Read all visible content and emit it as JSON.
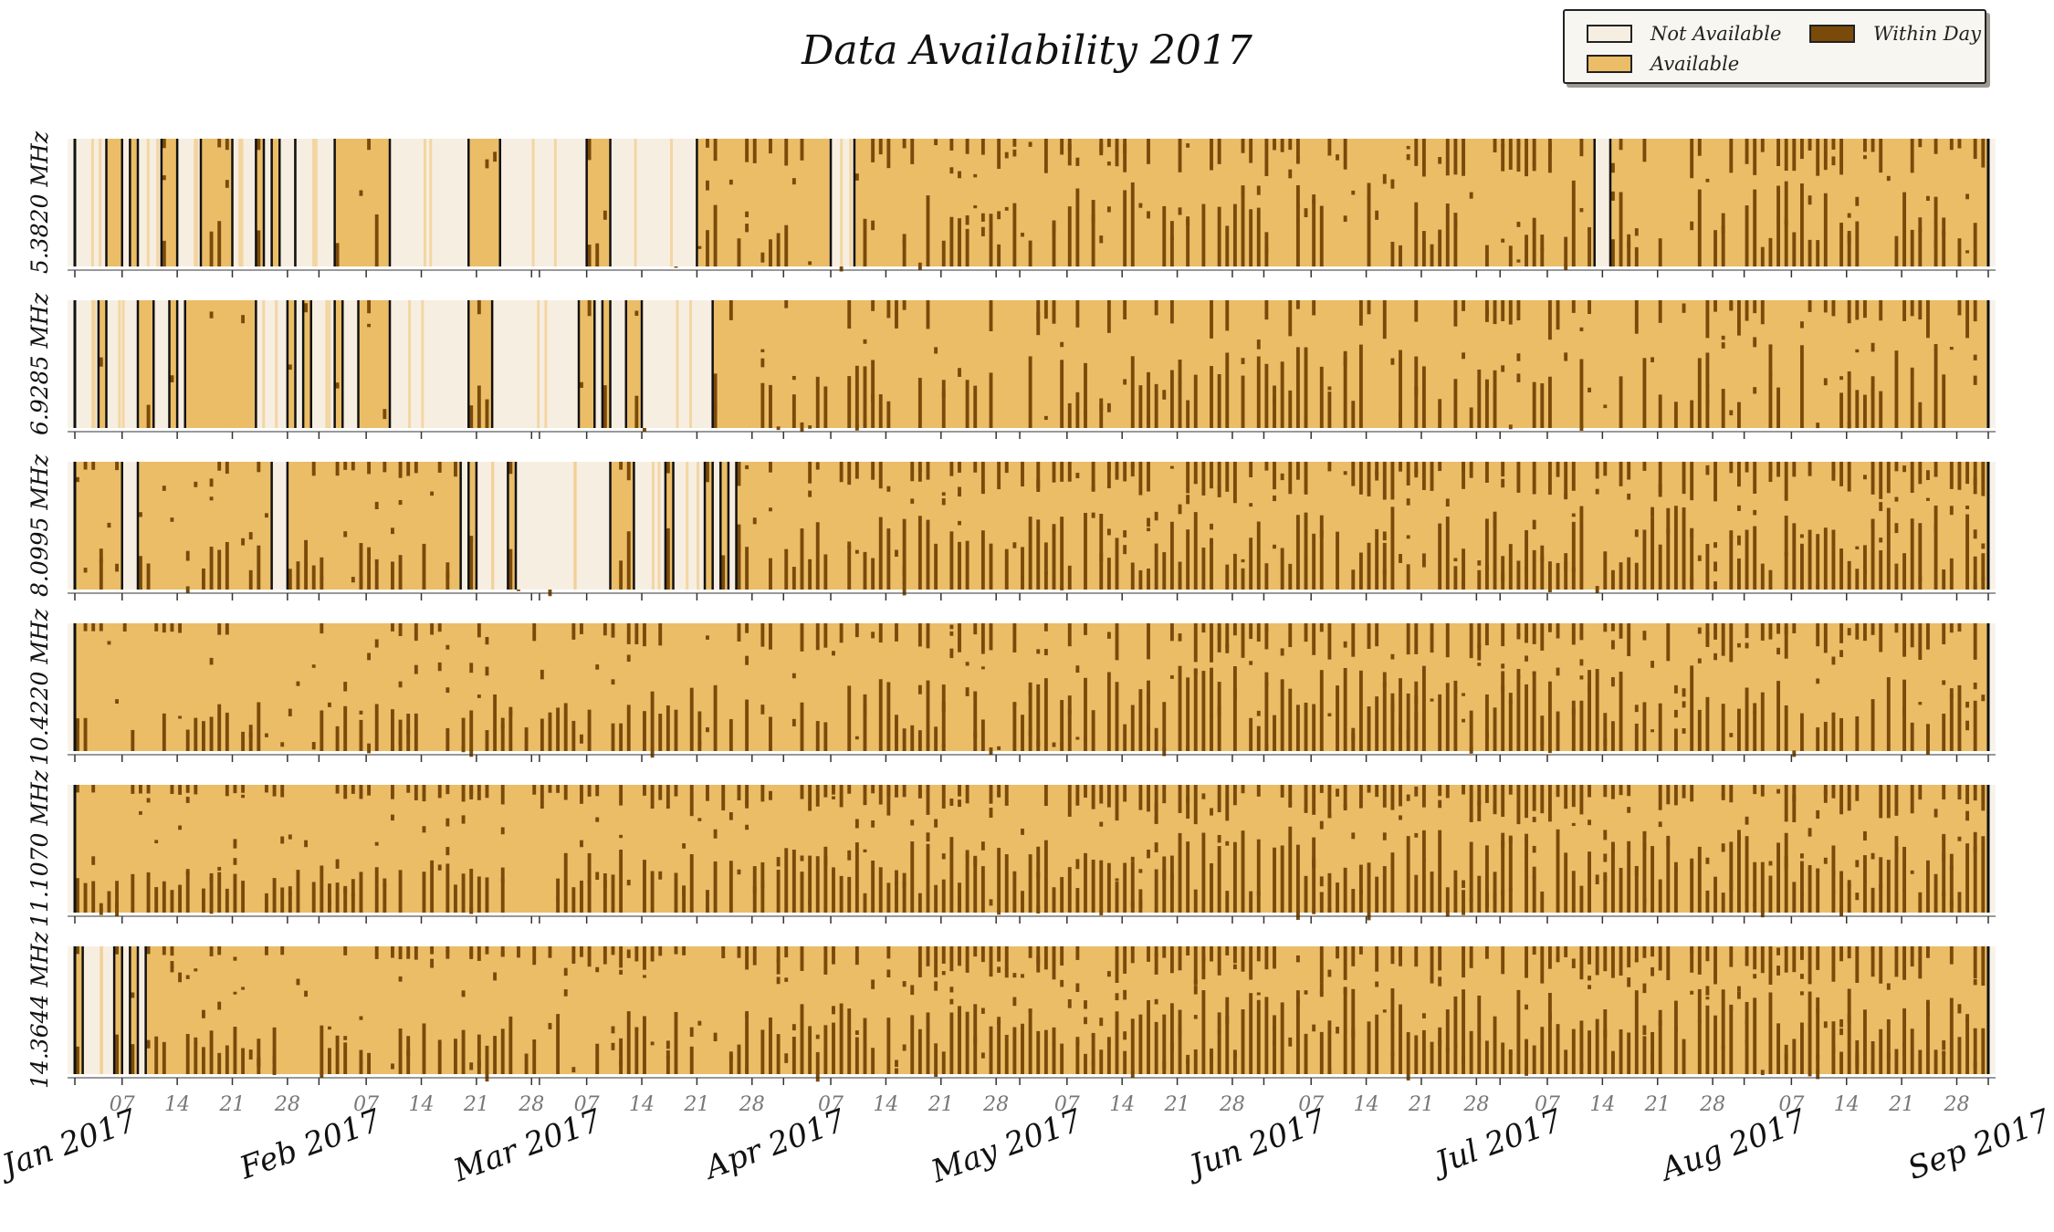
{
  "chart_data": {
    "type": "heatmap",
    "title": "Data Availability 2017",
    "legend": {
      "placement": "top-right",
      "entries": [
        {
          "label": "Not Available",
          "color": "#f7eee2"
        },
        {
          "label": "Within Day",
          "color": "#7a4a0a"
        },
        {
          "label": "Available",
          "color": "#ebbd67"
        }
      ]
    },
    "xlim": [
      "2017-01-01",
      "2017-09-01"
    ],
    "x_major_ticks": [
      "Jan 2017",
      "Feb 2017",
      "Mar 2017",
      "Apr 2017",
      "May 2017",
      "Jun 2017",
      "Jul 2017",
      "Aug 2017",
      "Sep 2017"
    ],
    "x_major_dates": [
      "2017-01-01",
      "2017-02-01",
      "2017-03-01",
      "2017-04-01",
      "2017-05-01",
      "2017-06-01",
      "2017-07-01",
      "2017-08-01",
      "2017-09-01"
    ],
    "x_minor_ticks": [
      "07",
      "14",
      "21",
      "28"
    ],
    "grid": false,
    "series": [
      {
        "name": "5.3820 MHz",
        "not_available_ranges": [
          [
            "2017-01-01",
            "2017-01-05"
          ],
          [
            "2017-01-07",
            "2017-01-08"
          ],
          [
            "2017-01-09",
            "2017-01-12"
          ],
          [
            "2017-01-14",
            "2017-01-17"
          ],
          [
            "2017-01-21",
            "2017-01-24"
          ],
          [
            "2017-01-25",
            "2017-01-26"
          ],
          [
            "2017-01-27",
            "2017-01-29"
          ],
          [
            "2017-01-29",
            "2017-02-03"
          ],
          [
            "2017-02-10",
            "2017-02-20"
          ],
          [
            "2017-02-24",
            "2017-03-07"
          ],
          [
            "2017-03-10",
            "2017-03-21"
          ],
          [
            "2017-04-07",
            "2017-04-10"
          ],
          [
            "2017-07-13",
            "2017-07-15"
          ]
        ]
      },
      {
        "name": "6.9285 MHz",
        "not_available_ranges": [
          [
            "2017-01-01",
            "2017-01-04"
          ],
          [
            "2017-01-05",
            "2017-01-09"
          ],
          [
            "2017-01-11",
            "2017-01-13"
          ],
          [
            "2017-01-14",
            "2017-01-15"
          ],
          [
            "2017-01-24",
            "2017-01-28"
          ],
          [
            "2017-01-29",
            "2017-01-30"
          ],
          [
            "2017-01-31",
            "2017-02-03"
          ],
          [
            "2017-02-04",
            "2017-02-06"
          ],
          [
            "2017-02-10",
            "2017-02-20"
          ],
          [
            "2017-02-23",
            "2017-03-06"
          ],
          [
            "2017-03-08",
            "2017-03-09"
          ],
          [
            "2017-03-10",
            "2017-03-12"
          ],
          [
            "2017-03-14",
            "2017-03-23"
          ]
        ]
      },
      {
        "name": "8.0995 MHz",
        "not_available_ranges": [
          [
            "2017-01-07",
            "2017-01-09"
          ],
          [
            "2017-01-26",
            "2017-01-28"
          ],
          [
            "2017-02-19",
            "2017-02-20"
          ],
          [
            "2017-02-21",
            "2017-02-25"
          ],
          [
            "2017-02-26",
            "2017-03-10"
          ],
          [
            "2017-03-13",
            "2017-03-17"
          ],
          [
            "2017-03-18",
            "2017-03-22"
          ],
          [
            "2017-03-23",
            "2017-03-24"
          ],
          [
            "2017-03-25",
            "2017-03-26"
          ]
        ]
      },
      {
        "name": "10.4220 MHz",
        "not_available_ranges": []
      },
      {
        "name": "11.1070 MHz",
        "not_available_ranges": []
      },
      {
        "name": "14.3644 MHz",
        "not_available_ranges": [
          [
            "2017-01-02",
            "2017-01-06"
          ],
          [
            "2017-01-07",
            "2017-01-08"
          ],
          [
            "2017-01-09",
            "2017-01-10"
          ]
        ]
      }
    ]
  }
}
